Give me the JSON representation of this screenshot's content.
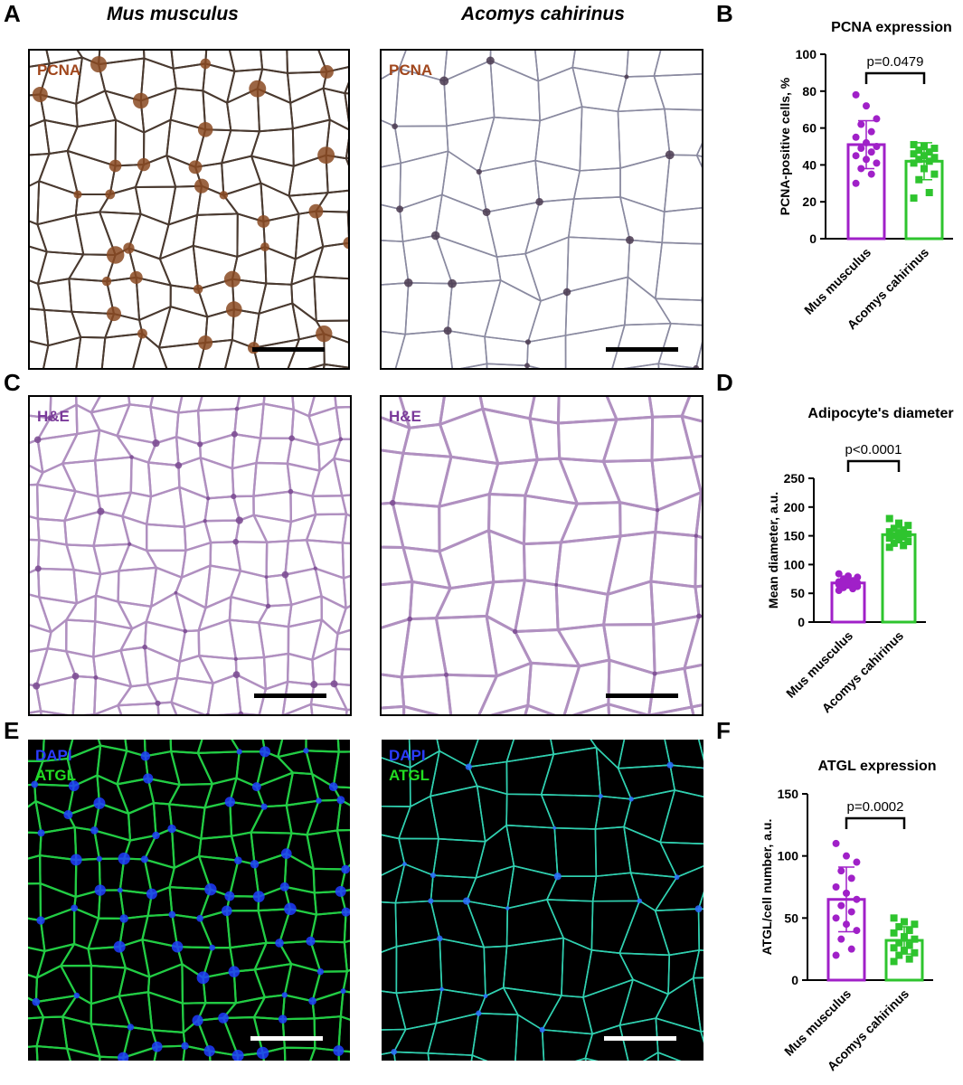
{
  "panels": {
    "A": "A",
    "B": "B",
    "C": "C",
    "D": "D",
    "E": "E",
    "F": "F"
  },
  "species_headers": {
    "left": "Mus musculus",
    "right": "Acomys cahirinus"
  },
  "micrographs": {
    "pcna": {
      "label": "PCNA",
      "label_color": "#a0461c"
    },
    "he": {
      "label": "H&E",
      "label_color": "#7a3a9a"
    },
    "if": {
      "label_line1": "DAPI",
      "label_line1_color": "#2a3cff",
      "label_line2": "ATGL",
      "label_line2_color": "#22dd22"
    }
  },
  "colors": {
    "mus": "#a020c8",
    "acomys": "#2ec42e",
    "pcna_stain": "#8a4a22",
    "he_stain": "#b090c0",
    "if_dapi": "#1e3cff",
    "if_atgl": "#22cc44",
    "if_atgl_acomys": "#30d0b0"
  },
  "chart_data": [
    {
      "id": "B",
      "type": "bar",
      "title": "PCNA expression",
      "ylabel": "PCNA-positive cells, %",
      "ylim": [
        0,
        100
      ],
      "yticks": [
        0,
        20,
        40,
        60,
        80,
        100
      ],
      "categories": [
        "Mus musculus",
        "Acomys cahirinus"
      ],
      "values": [
        51,
        42
      ],
      "sd": [
        13,
        10
      ],
      "points": [
        [
          78,
          72,
          65,
          62,
          58,
          55,
          52,
          50,
          49,
          47,
          45,
          43,
          41,
          38,
          35,
          30
        ],
        [
          51,
          50,
          49,
          48,
          47,
          46,
          45,
          44,
          43,
          42,
          41,
          38,
          35,
          32,
          25,
          22
        ]
      ],
      "significance": "p=0.0479"
    },
    {
      "id": "D",
      "type": "bar",
      "title": "Adipocyte's diameter",
      "ylabel": "Mean diameter, a.u.",
      "ylim": [
        0,
        250
      ],
      "yticks": [
        0,
        50,
        100,
        150,
        200,
        250
      ],
      "categories": [
        "Mus musculus",
        "Acomys cahirinus"
      ],
      "values": [
        68,
        152
      ],
      "sd": [
        8,
        13
      ],
      "points": [
        [
          84,
          80,
          78,
          75,
          72,
          70,
          69,
          68,
          67,
          66,
          65,
          64,
          62,
          60,
          58,
          55
        ],
        [
          180,
          172,
          168,
          163,
          160,
          157,
          155,
          153,
          150,
          148,
          146,
          143,
          140,
          137,
          133,
          130
        ]
      ],
      "significance": "p<0.0001"
    },
    {
      "id": "F",
      "type": "bar",
      "title": "ATGL expression",
      "ylabel": "ATGL/cell number, a.u.",
      "ylim": [
        0,
        150
      ],
      "yticks": [
        0,
        50,
        100,
        150
      ],
      "categories": [
        "Mus musculus",
        "Acomys cahirinus"
      ],
      "values": [
        65,
        32
      ],
      "sd": [
        26,
        11
      ],
      "points": [
        [
          110,
          100,
          95,
          88,
          82,
          75,
          70,
          65,
          60,
          55,
          50,
          45,
          40,
          33,
          25,
          20
        ],
        [
          50,
          47,
          45,
          43,
          40,
          38,
          35,
          33,
          30,
          28,
          26,
          24,
          22,
          20,
          17,
          15
        ]
      ],
      "significance": "p=0.0002"
    }
  ]
}
